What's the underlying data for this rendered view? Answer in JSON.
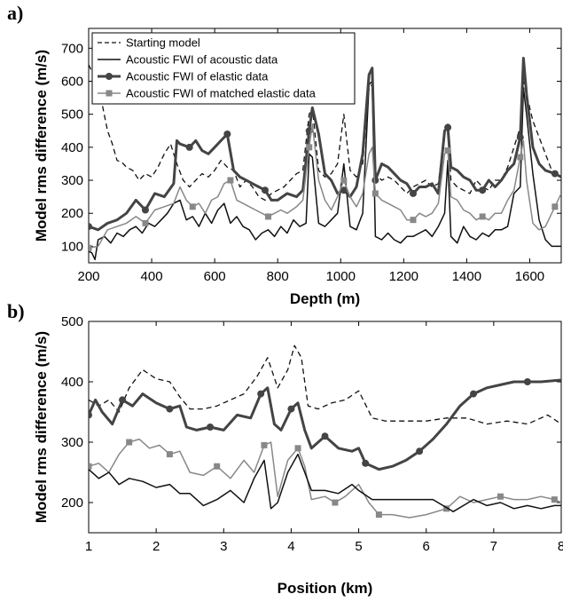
{
  "chart_data": [
    {
      "panel_label": "a)",
      "type": "line",
      "xlabel": "Depth (m)",
      "ylabel": "Model rms difference (m/s)",
      "xlim": [
        200,
        1700
      ],
      "ylim": [
        50,
        760
      ],
      "xticks": [
        200,
        400,
        600,
        800,
        1000,
        1200,
        1400,
        1600
      ],
      "yticks": [
        100,
        200,
        300,
        400,
        500,
        600,
        700
      ],
      "grid": false,
      "legend_position": "top-left",
      "series": [
        {
          "name": "Starting model",
          "style": "dashed",
          "color": "#111111",
          "marker": "none",
          "x": [
            200,
            215,
            230,
            245,
            260,
            275,
            290,
            305,
            320,
            340,
            360,
            380,
            400,
            420,
            440,
            460,
            480,
            500,
            520,
            540,
            560,
            580,
            600,
            620,
            640,
            660,
            680,
            700,
            720,
            740,
            760,
            780,
            800,
            820,
            840,
            860,
            880,
            900,
            910,
            930,
            950,
            970,
            990,
            1010,
            1030,
            1050,
            1070,
            1090,
            1100,
            1110,
            1130,
            1150,
            1170,
            1190,
            1210,
            1230,
            1250,
            1270,
            1290,
            1310,
            1330,
            1340,
            1350,
            1370,
            1390,
            1410,
            1430,
            1450,
            1470,
            1490,
            1510,
            1530,
            1550,
            1570,
            1580,
            1590,
            1610,
            1630,
            1650,
            1670,
            1700
          ],
          "y": [
            650,
            620,
            600,
            520,
            450,
            410,
            360,
            355,
            340,
            330,
            300,
            320,
            310,
            340,
            380,
            410,
            350,
            300,
            280,
            300,
            320,
            310,
            330,
            360,
            340,
            330,
            280,
            300,
            280,
            250,
            240,
            260,
            270,
            280,
            300,
            320,
            330,
            500,
            520,
            330,
            310,
            320,
            350,
            500,
            330,
            310,
            350,
            580,
            590,
            320,
            300,
            310,
            300,
            280,
            260,
            280,
            290,
            300,
            280,
            290,
            450,
            470,
            300,
            280,
            270,
            260,
            300,
            280,
            270,
            300,
            300,
            340,
            400,
            460,
            600,
            560,
            480,
            430,
            380,
            330,
            320
          ]
        },
        {
          "name": "Acoustic FWI of acoustic data",
          "style": "solid",
          "color": "#111111",
          "marker": "none",
          "x": [
            200,
            210,
            220,
            230,
            250,
            270,
            290,
            310,
            330,
            350,
            370,
            390,
            410,
            430,
            450,
            470,
            490,
            510,
            530,
            550,
            570,
            590,
            610,
            630,
            650,
            670,
            690,
            710,
            730,
            750,
            770,
            790,
            810,
            830,
            850,
            870,
            890,
            900,
            910,
            930,
            950,
            970,
            990,
            1010,
            1030,
            1050,
            1070,
            1090,
            1100,
            1110,
            1130,
            1150,
            1170,
            1190,
            1210,
            1230,
            1250,
            1270,
            1290,
            1310,
            1330,
            1340,
            1350,
            1370,
            1390,
            1410,
            1430,
            1450,
            1470,
            1490,
            1510,
            1530,
            1550,
            1570,
            1580,
            1590,
            1610,
            1630,
            1650,
            1670,
            1700
          ],
          "y": [
            85,
            80,
            60,
            120,
            130,
            110,
            140,
            130,
            150,
            160,
            140,
            170,
            160,
            180,
            200,
            230,
            240,
            180,
            190,
            160,
            200,
            170,
            210,
            230,
            170,
            190,
            160,
            150,
            120,
            140,
            150,
            130,
            160,
            140,
            180,
            160,
            170,
            380,
            370,
            170,
            160,
            180,
            200,
            350,
            160,
            150,
            200,
            590,
            600,
            130,
            120,
            140,
            120,
            110,
            130,
            130,
            140,
            150,
            130,
            160,
            200,
            360,
            130,
            110,
            160,
            130,
            120,
            140,
            130,
            150,
            150,
            160,
            260,
            280,
            580,
            500,
            320,
            180,
            120,
            100,
            100
          ]
        },
        {
          "name": "Acoustic FWI of elastic data",
          "style": "thick",
          "color": "#444444",
          "marker": "circle",
          "x": [
            200,
            230,
            260,
            290,
            320,
            350,
            380,
            410,
            440,
            470,
            480,
            490,
            520,
            540,
            560,
            580,
            600,
            620,
            640,
            660,
            680,
            700,
            720,
            740,
            760,
            780,
            800,
            830,
            860,
            880,
            900,
            910,
            930,
            950,
            970,
            990,
            1010,
            1030,
            1050,
            1070,
            1090,
            1100,
            1110,
            1130,
            1150,
            1170,
            1190,
            1210,
            1230,
            1250,
            1270,
            1290,
            1310,
            1330,
            1340,
            1350,
            1370,
            1390,
            1410,
            1430,
            1450,
            1470,
            1490,
            1510,
            1530,
            1550,
            1570,
            1580,
            1590,
            1610,
            1630,
            1650,
            1680,
            1700
          ],
          "y": [
            160,
            150,
            170,
            180,
            200,
            240,
            210,
            260,
            250,
            290,
            420,
            410,
            400,
            420,
            390,
            380,
            400,
            420,
            440,
            330,
            310,
            300,
            290,
            280,
            270,
            240,
            240,
            260,
            250,
            270,
            450,
            520,
            440,
            320,
            300,
            260,
            270,
            250,
            280,
            380,
            620,
            640,
            300,
            350,
            340,
            320,
            300,
            290,
            260,
            280,
            280,
            290,
            260,
            450,
            460,
            340,
            330,
            310,
            300,
            270,
            270,
            300,
            280,
            300,
            330,
            350,
            430,
            670,
            560,
            400,
            350,
            330,
            320,
            310
          ]
        },
        {
          "name": "Acoustic FWI of matched elastic data",
          "style": "solid",
          "color": "#888888",
          "marker": "square",
          "x": [
            200,
            230,
            260,
            290,
            320,
            350,
            380,
            410,
            440,
            470,
            490,
            510,
            530,
            550,
            570,
            590,
            610,
            630,
            650,
            670,
            690,
            710,
            730,
            750,
            770,
            790,
            810,
            830,
            860,
            880,
            900,
            910,
            930,
            950,
            970,
            990,
            1010,
            1030,
            1050,
            1070,
            1090,
            1100,
            1110,
            1130,
            1150,
            1170,
            1190,
            1210,
            1230,
            1250,
            1270,
            1290,
            1310,
            1330,
            1340,
            1350,
            1370,
            1390,
            1410,
            1430,
            1450,
            1470,
            1490,
            1510,
            1530,
            1550,
            1570,
            1580,
            1590,
            1610,
            1630,
            1650,
            1680,
            1700
          ],
          "y": [
            95,
            100,
            150,
            160,
            170,
            190,
            170,
            210,
            220,
            230,
            280,
            240,
            220,
            230,
            200,
            240,
            250,
            290,
            300,
            240,
            230,
            220,
            210,
            200,
            190,
            200,
            210,
            200,
            220,
            240,
            400,
            470,
            300,
            240,
            210,
            250,
            300,
            250,
            220,
            260,
            380,
            400,
            260,
            240,
            230,
            220,
            210,
            180,
            180,
            200,
            190,
            200,
            230,
            380,
            390,
            250,
            240,
            210,
            200,
            180,
            190,
            180,
            200,
            200,
            240,
            270,
            370,
            420,
            300,
            170,
            150,
            160,
            220,
            260
          ]
        }
      ]
    },
    {
      "panel_label": "b)",
      "type": "line",
      "xlabel": "Position (km)",
      "ylabel": "Model rms difference (m/s)",
      "xlim": [
        1,
        8
      ],
      "ylim": [
        150,
        500
      ],
      "xticks": [
        1,
        2,
        3,
        4,
        5,
        6,
        7,
        8
      ],
      "yticks": [
        200,
        300,
        400,
        500
      ],
      "grid": false,
      "series": [
        {
          "name": "Starting model",
          "style": "dashed",
          "color": "#111111",
          "marker": "none",
          "x": [
            1,
            1.15,
            1.3,
            1.45,
            1.6,
            1.8,
            2,
            2.2,
            2.35,
            2.5,
            2.7,
            2.9,
            3.1,
            3.3,
            3.5,
            3.65,
            3.8,
            3.95,
            4.05,
            4.15,
            4.25,
            4.4,
            4.6,
            4.8,
            5,
            5.2,
            5.4,
            5.7,
            6,
            6.3,
            6.6,
            6.9,
            7.2,
            7.5,
            7.8,
            8
          ],
          "y": [
            370,
            360,
            370,
            350,
            390,
            420,
            405,
            400,
            375,
            355,
            355,
            360,
            370,
            380,
            410,
            440,
            390,
            420,
            460,
            440,
            360,
            355,
            365,
            370,
            385,
            340,
            335,
            335,
            335,
            340,
            340,
            330,
            335,
            330,
            345,
            330
          ]
        },
        {
          "name": "Acoustic FWI of elastic data",
          "style": "thick",
          "color": "#444444",
          "marker": "circle",
          "x": [
            1,
            1.1,
            1.2,
            1.35,
            1.5,
            1.65,
            1.8,
            2,
            2.2,
            2.35,
            2.45,
            2.6,
            2.8,
            3,
            3.2,
            3.4,
            3.55,
            3.65,
            3.75,
            3.85,
            4,
            4.1,
            4.2,
            4.3,
            4.5,
            4.7,
            4.9,
            5,
            5.1,
            5.3,
            5.5,
            5.7,
            5.9,
            6.1,
            6.3,
            6.5,
            6.7,
            6.9,
            7.1,
            7.3,
            7.5,
            7.7,
            8
          ],
          "y": [
            345,
            370,
            350,
            330,
            370,
            360,
            380,
            365,
            355,
            360,
            325,
            320,
            325,
            320,
            345,
            340,
            380,
            390,
            330,
            320,
            355,
            365,
            320,
            290,
            310,
            290,
            285,
            290,
            265,
            255,
            260,
            270,
            285,
            305,
            330,
            360,
            380,
            390,
            395,
            400,
            400,
            400,
            403
          ]
        },
        {
          "name": "Acoustic FWI of matched elastic data",
          "style": "solid",
          "color": "#888888",
          "marker": "square",
          "x": [
            1,
            1.15,
            1.3,
            1.45,
            1.6,
            1.75,
            1.9,
            2.05,
            2.2,
            2.35,
            2.5,
            2.7,
            2.9,
            3.1,
            3.3,
            3.45,
            3.6,
            3.7,
            3.8,
            3.95,
            4.1,
            4.2,
            4.3,
            4.5,
            4.65,
            4.8,
            5,
            5.15,
            5.3,
            5.5,
            5.75,
            6,
            6.3,
            6.5,
            6.7,
            6.9,
            7.1,
            7.3,
            7.5,
            7.7,
            7.9,
            8
          ],
          "y": [
            260,
            265,
            250,
            280,
            300,
            305,
            290,
            295,
            280,
            285,
            250,
            245,
            260,
            240,
            270,
            250,
            295,
            300,
            210,
            270,
            290,
            260,
            205,
            210,
            200,
            210,
            230,
            200,
            180,
            180,
            175,
            180,
            190,
            210,
            200,
            205,
            210,
            205,
            205,
            210,
            205,
            200
          ]
        },
        {
          "name": "Acoustic FWI of acoustic data",
          "style": "solid",
          "color": "#111111",
          "marker": "none",
          "x": [
            1,
            1.15,
            1.3,
            1.45,
            1.6,
            1.8,
            2,
            2.2,
            2.35,
            2.5,
            2.7,
            2.9,
            3.1,
            3.3,
            3.45,
            3.6,
            3.7,
            3.8,
            3.95,
            4.1,
            4.2,
            4.3,
            4.5,
            4.7,
            4.9,
            5,
            5.2,
            5.5,
            5.8,
            6.1,
            6.4,
            6.7,
            6.9,
            7.1,
            7.3,
            7.5,
            7.7,
            7.9,
            8
          ],
          "y": [
            255,
            240,
            250,
            230,
            240,
            235,
            225,
            230,
            215,
            215,
            195,
            205,
            220,
            200,
            240,
            270,
            190,
            200,
            250,
            280,
            250,
            220,
            220,
            215,
            230,
            220,
            205,
            205,
            205,
            205,
            185,
            205,
            195,
            200,
            190,
            195,
            190,
            195,
            195
          ]
        }
      ]
    }
  ]
}
